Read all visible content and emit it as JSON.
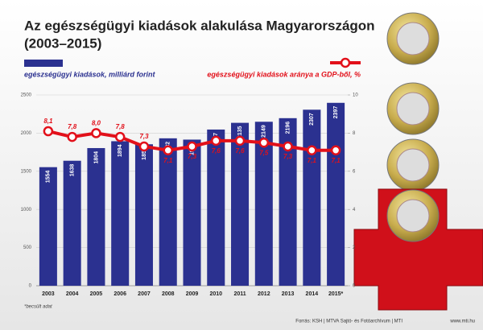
{
  "chart_data": {
    "type": "bar_line",
    "title": [
      "Az egészségügyi kiadások alakulása Magyarországon",
      "(2003–2015)"
    ],
    "categories": [
      "2003",
      "2004",
      "2005",
      "2006",
      "2007",
      "2008",
      "2009",
      "2010",
      "2011",
      "2012",
      "2013",
      "2014",
      "2015*"
    ],
    "series": [
      {
        "name": "egészségügyi kiadások, milliárd forint",
        "color": "#2b3190",
        "kind": "bar",
        "values": [
          1554,
          1638,
          1804,
          1894,
          1854,
          1932,
          1915,
          2047,
          2135,
          2149,
          2196,
          2307,
          2397
        ]
      },
      {
        "name": "egészségügyi kiadások aránya a GDP-ből, %",
        "color": "#e2101a",
        "kind": "line",
        "axis": "y2",
        "values": [
          8.1,
          7.8,
          8.0,
          7.8,
          7.3,
          7.1,
          7.3,
          7.6,
          7.6,
          7.5,
          7.3,
          7.1,
          7.1
        ],
        "value_labels": [
          "8,1",
          "7,8",
          "8,0",
          "7,8",
          "7,3",
          "7,1",
          "7,3",
          "7,6",
          "7,6",
          "7,5",
          "7,3",
          "7,1",
          "7,1"
        ]
      }
    ],
    "ylim": [
      0,
      2500
    ],
    "yticks": [
      0,
      500,
      1000,
      1500,
      2000,
      2500
    ],
    "y2lim": [
      0,
      10
    ],
    "y2ticks": [
      0,
      2,
      4,
      6,
      8,
      10
    ],
    "grid": true,
    "footnote": "*becsült adat",
    "source": "Forrás: KSH | MTVA Sajtó- és Fotóarchívum | MTI",
    "website": "www.mti.hu"
  }
}
